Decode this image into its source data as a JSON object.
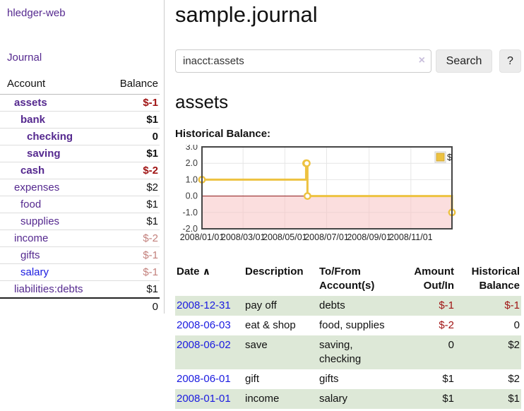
{
  "sidebar": {
    "brand": "hledger-web",
    "nav_journal": "Journal",
    "accounts_header": {
      "account": "Account",
      "balance": "Balance"
    },
    "accounts": [
      {
        "name": "assets",
        "indent": 1,
        "current": true,
        "link": "purple",
        "balance": "$-1",
        "balance_class": "neg"
      },
      {
        "name": "bank",
        "indent": 2,
        "current": true,
        "link": "purple",
        "balance": "$1",
        "balance_class": ""
      },
      {
        "name": "checking",
        "indent": 3,
        "current": true,
        "link": "purple",
        "balance": "0",
        "balance_class": ""
      },
      {
        "name": "saving",
        "indent": 3,
        "current": true,
        "link": "purple",
        "balance": "$1",
        "balance_class": ""
      },
      {
        "name": "cash",
        "indent": 2,
        "current": true,
        "link": "purple",
        "balance": "$-2",
        "balance_class": "neg"
      },
      {
        "name": "expenses",
        "indent": 1,
        "current": false,
        "link": "purple",
        "balance": "$2",
        "balance_class": ""
      },
      {
        "name": "food",
        "indent": 2,
        "current": false,
        "link": "purple",
        "balance": "$1",
        "balance_class": ""
      },
      {
        "name": "supplies",
        "indent": 2,
        "current": false,
        "link": "purple",
        "balance": "$1",
        "balance_class": ""
      },
      {
        "name": "income",
        "indent": 1,
        "current": false,
        "link": "purple",
        "balance": "$-2",
        "balance_class": "neg-faded"
      },
      {
        "name": "gifts",
        "indent": 2,
        "current": false,
        "link": "purple",
        "balance": "$-1",
        "balance_class": "neg-faded"
      },
      {
        "name": "salary",
        "indent": 2,
        "current": false,
        "link": "blue",
        "balance": "$-1",
        "balance_class": "neg-faded"
      },
      {
        "name": "liabilities:debts",
        "indent": 1,
        "current": false,
        "link": "purple",
        "balance": "$1",
        "balance_class": ""
      }
    ],
    "total": "0"
  },
  "main": {
    "title": "sample.journal",
    "search": {
      "value": "inacct:assets",
      "clear_icon": "×",
      "button_label": "Search",
      "help_label": "?"
    },
    "account_heading": "assets"
  },
  "chart_data": {
    "type": "line",
    "title": "Historical Balance:",
    "step": true,
    "x_range": [
      "2008-01-01",
      "2008-12-31"
    ],
    "ylim": [
      -2,
      3
    ],
    "y_ticks": [
      "3.0",
      "2.0",
      "1.0",
      "0.0",
      "-1.0",
      "-2.0"
    ],
    "x_ticks": [
      "2008/01/01",
      "2008/03/01",
      "2008/05/01",
      "2008/07/01",
      "2008/09/01",
      "2008/11/01"
    ],
    "series": [
      {
        "name": "$",
        "color": "#EDC240",
        "points": [
          [
            "2008-01-01",
            1
          ],
          [
            "2008-06-01",
            2
          ],
          [
            "2008-06-02",
            2
          ],
          [
            "2008-06-03",
            0
          ],
          [
            "2008-12-31",
            -1
          ]
        ]
      }
    ],
    "grid": true,
    "legend_position": "top-right",
    "negative_region_color": "rgba(247,195,195,0.55)",
    "zero_line_color": "#8b1515",
    "border_color": "#454545"
  },
  "register": {
    "headers": {
      "date": "Date",
      "sort_icon": "∧",
      "description": "Description",
      "accounts": "To/From Account(s)",
      "amount": "Amount Out/In",
      "balance": "Historical Balance"
    },
    "rows": [
      {
        "date": "2008-12-31",
        "description": "pay off",
        "accounts": [
          "debts"
        ],
        "amount": "$-1",
        "amount_class": "neg",
        "balance": "$-1",
        "balance_class": "neg"
      },
      {
        "date": "2008-06-03",
        "description": "eat & shop",
        "accounts": [
          "food",
          "supplies"
        ],
        "amount": "$-2",
        "amount_class": "neg",
        "balance": "0",
        "balance_class": ""
      },
      {
        "date": "2008-06-02",
        "description": "save",
        "accounts": [
          "saving",
          "checking"
        ],
        "amount": "0",
        "amount_class": "",
        "balance": "$2",
        "balance_class": ""
      },
      {
        "date": "2008-06-01",
        "description": "gift",
        "accounts": [
          "gifts"
        ],
        "amount": "$1",
        "amount_class": "",
        "balance": "$2",
        "balance_class": ""
      },
      {
        "date": "2008-01-01",
        "description": "income",
        "accounts": [
          "salary"
        ],
        "amount": "$1",
        "amount_class": "",
        "balance": "$1",
        "balance_class": ""
      }
    ]
  }
}
